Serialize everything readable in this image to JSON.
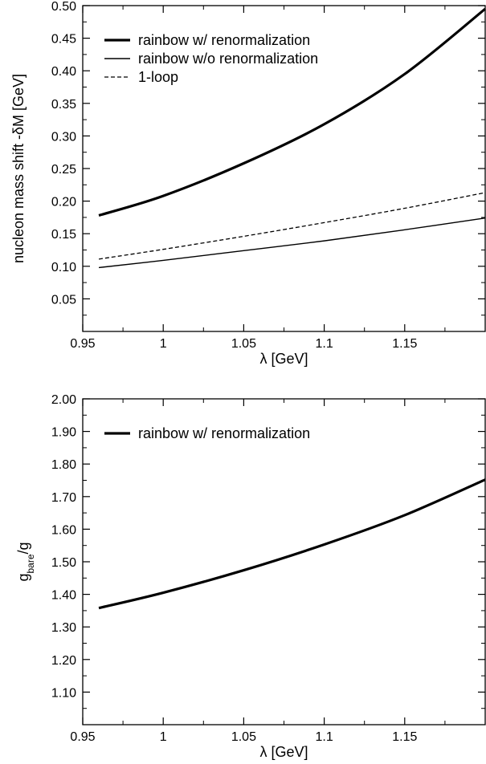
{
  "chart_data": [
    {
      "type": "line",
      "xlabel": "λ [GeV]",
      "ylabel": "nucleon mass shift   -δM [GeV]",
      "xlim": [
        0.95,
        1.2
      ],
      "ylim": [
        0.0,
        0.5
      ],
      "x_ticks": [
        0.95,
        1.0,
        1.05,
        1.1,
        1.15
      ],
      "x_tick_labels": [
        "0.95",
        "1",
        "1.05",
        "1.1",
        "1.15"
      ],
      "y_ticks": [
        0.05,
        0.1,
        0.15,
        0.2,
        0.25,
        0.3,
        0.35,
        0.4,
        0.45,
        0.5
      ],
      "y_tick_labels": [
        "0.05",
        "0.10",
        "0.15",
        "0.20",
        "0.25",
        "0.30",
        "0.35",
        "0.40",
        "0.45",
        "0.50"
      ],
      "grid": false,
      "legend_position": "top-left",
      "series": [
        {
          "name": "rainbow w/ renormalization",
          "style": "thick-solid",
          "x": [
            0.96,
            1.0,
            1.05,
            1.1,
            1.15,
            1.2
          ],
          "y": [
            0.178,
            0.208,
            0.258,
            0.318,
            0.395,
            0.495
          ]
        },
        {
          "name": "rainbow w/o renormalization",
          "style": "thin-solid",
          "x": [
            0.96,
            1.0,
            1.05,
            1.1,
            1.15,
            1.2
          ],
          "y": [
            0.098,
            0.109,
            0.124,
            0.139,
            0.156,
            0.174
          ]
        },
        {
          "name": "1-loop",
          "style": "dashed",
          "x": [
            0.96,
            1.0,
            1.05,
            1.1,
            1.15,
            1.2
          ],
          "y": [
            0.111,
            0.126,
            0.146,
            0.167,
            0.189,
            0.213
          ]
        }
      ]
    },
    {
      "type": "line",
      "xlabel": "λ [GeV]",
      "ylabel_main": "g",
      "ylabel_sub": "bare",
      "ylabel_tail": "/g",
      "xlim": [
        0.95,
        1.2
      ],
      "ylim": [
        1.0,
        2.0
      ],
      "x_ticks": [
        0.95,
        1.0,
        1.05,
        1.1,
        1.15
      ],
      "x_tick_labels": [
        "0.95",
        "1",
        "1.05",
        "1.1",
        "1.15"
      ],
      "y_ticks": [
        1.1,
        1.2,
        1.3,
        1.4,
        1.5,
        1.6,
        1.7,
        1.8,
        1.9,
        2.0
      ],
      "y_tick_labels": [
        "1.10",
        "1.20",
        "1.30",
        "1.40",
        "1.50",
        "1.60",
        "1.70",
        "1.80",
        "1.90",
        "2.00"
      ],
      "grid": false,
      "legend_position": "top-left",
      "series": [
        {
          "name": "rainbow w/ renormalization",
          "style": "thick-solid",
          "x": [
            0.96,
            1.0,
            1.05,
            1.1,
            1.15,
            1.2
          ],
          "y": [
            1.358,
            1.405,
            1.474,
            1.553,
            1.643,
            1.752
          ]
        }
      ]
    }
  ]
}
